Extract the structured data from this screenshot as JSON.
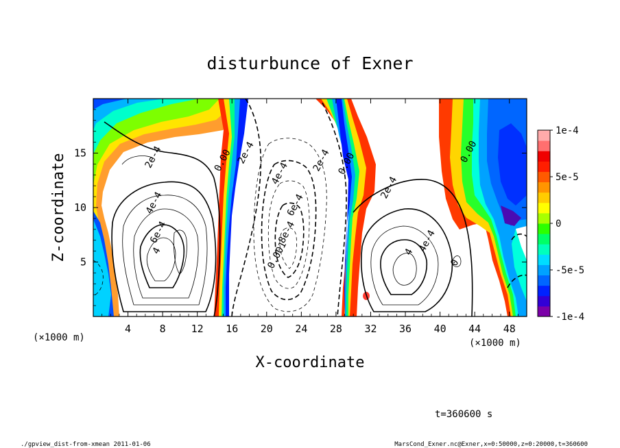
{
  "chart_data": {
    "type": "heatmap",
    "title": "disturbunce of Exner",
    "xlabel": "X-coordinate",
    "ylabel": "Z-coordinate",
    "x_unit_left": "(×1000 m)",
    "x_unit_right": "(×1000 m)",
    "xlim": [
      0,
      50
    ],
    "ylim": [
      0,
      20
    ],
    "x_ticks": [
      {
        "v": 4,
        "label": "4"
      },
      {
        "v": 8,
        "label": "8"
      },
      {
        "v": 12,
        "label": "12"
      },
      {
        "v": 16,
        "label": "16"
      },
      {
        "v": 20,
        "label": "20"
      },
      {
        "v": 24,
        "label": "24"
      },
      {
        "v": 28,
        "label": "28"
      },
      {
        "v": 32,
        "label": "32"
      },
      {
        "v": 36,
        "label": "36"
      },
      {
        "v": 40,
        "label": "40"
      },
      {
        "v": 44,
        "label": "44"
      },
      {
        "v": 48,
        "label": "48"
      }
    ],
    "y_ticks": [
      {
        "v": 5,
        "label": "5"
      },
      {
        "v": 10,
        "label": "10"
      },
      {
        "v": 15,
        "label": "15"
      }
    ],
    "colorbar": {
      "min": -0.0001,
      "max": 0.0001,
      "colors": [
        "#7b00a8",
        "#3200d6",
        "#0022ff",
        "#0066ff",
        "#00a2ff",
        "#00ddff",
        "#00ffbb",
        "#00ff66",
        "#2cff00",
        "#a8ff00",
        "#ffff00",
        "#ffcc00",
        "#ff9500",
        "#ff5a00",
        "#ff1e00",
        "#f00000",
        "#ff6f6f",
        "#ffaaaa"
      ],
      "labels": [
        {
          "v": 0.0001,
          "label": "1e-4"
        },
        {
          "v": 5e-05,
          "label": "5e-5"
        },
        {
          "v": 0,
          "label": "0"
        },
        {
          "v": -5e-05,
          "label": "-5e-5"
        },
        {
          "v": -0.0001,
          "label": "-1e-4"
        }
      ]
    },
    "contour_labels": [
      {
        "x": 7.2,
        "z": 14.5,
        "label": "2e-4"
      },
      {
        "x": 7.3,
        "z": 10.3,
        "label": "4e-4"
      },
      {
        "x": 7.8,
        "z": 7.6,
        "label": "6e-4"
      },
      {
        "x": 7.6,
        "z": 5.9,
        "label": "4"
      },
      {
        "x": 15.2,
        "z": 14.2,
        "label": "0.00"
      },
      {
        "x": 17.9,
        "z": 14.9,
        "label": "2e-4"
      },
      {
        "x": 21.8,
        "z": 13.0,
        "label": "4e-4"
      },
      {
        "x": 23.6,
        "z": 10.1,
        "label": "6e-4"
      },
      {
        "x": 22.6,
        "z": 7.6,
        "label": "8e-4"
      },
      {
        "x": 21.5,
        "z": 5.5,
        "label": "0.001"
      },
      {
        "x": 26.6,
        "z": 14.2,
        "label": "2e-4"
      },
      {
        "x": 29.5,
        "z": 13.9,
        "label": "0.00"
      },
      {
        "x": 34.4,
        "z": 11.7,
        "label": "2e-4"
      },
      {
        "x": 38.8,
        "z": 6.8,
        "label": "4e-4"
      },
      {
        "x": 36.7,
        "z": 5.8,
        "label": "4"
      },
      {
        "x": 42.0,
        "z": 4.8,
        "label": "0"
      },
      {
        "x": 43.6,
        "z": 15.0,
        "label": "0.00"
      }
    ]
  },
  "footer": {
    "time": "t=360600 s",
    "script": "./gpview_dist-from-xmean  2011-01-06",
    "source": "MarsCond_Exner.nc@Exner,x=0:50000,z=0:20000,t=360600"
  }
}
